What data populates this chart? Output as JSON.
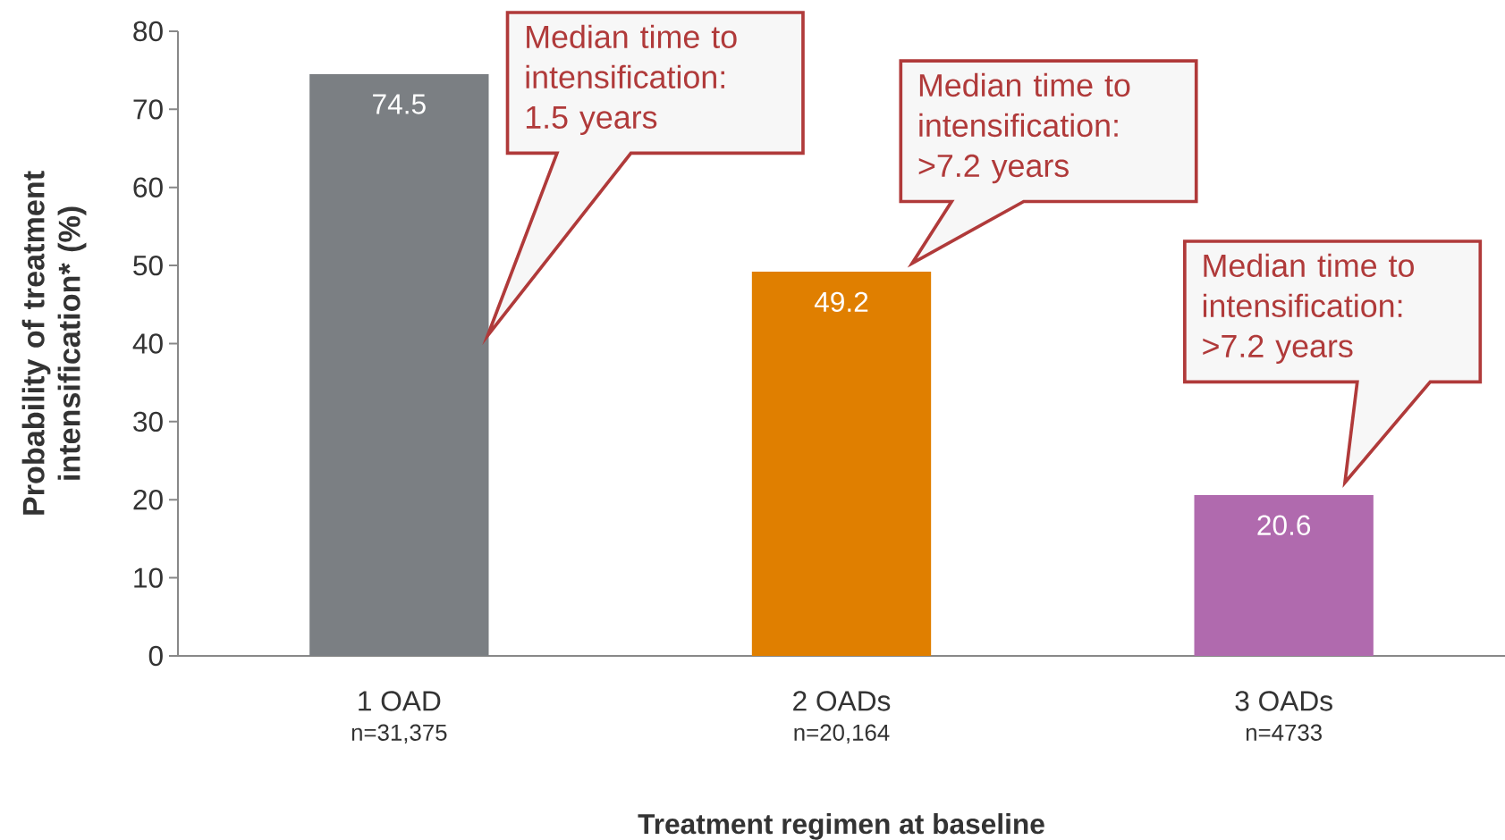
{
  "chart_data": {
    "type": "bar",
    "xlabel": "Treatment regimen at baseline",
    "ylabel": "Probability of treatment intensification* (%)",
    "categories": [
      "1 OAD",
      "2 OADs",
      "3 OADs"
    ],
    "values": [
      74.5,
      49.2,
      20.6
    ],
    "colors": [
      "#7b7f83",
      "#e07f00",
      "#b06aae"
    ],
    "data_labels": true,
    "ylim": [
      0,
      80
    ],
    "yticks": [
      0,
      10,
      20,
      30,
      40,
      50,
      60,
      70,
      80
    ],
    "grid": false,
    "annotations": [
      "Median time to intensification: 1.5 years",
      "Median time to intensification: >7.2 years",
      "Median time to intensification: >7.2 years",
      "n=31,375",
      "n=20,164",
      "n=4733"
    ]
  }
}
